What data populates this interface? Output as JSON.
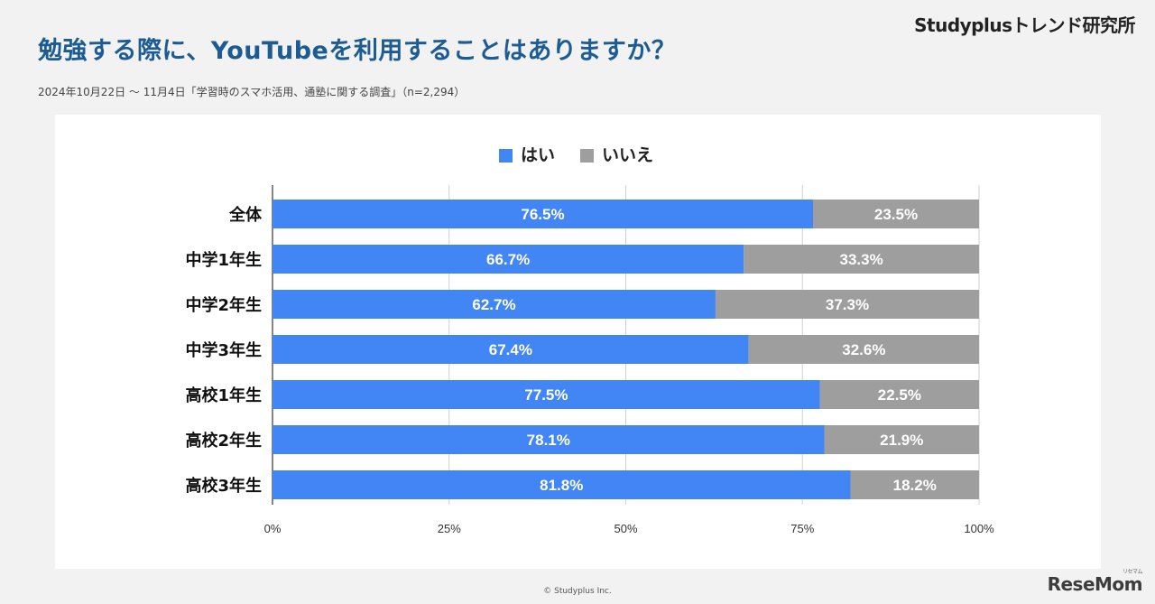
{
  "header": {
    "brand": "Studyplusトレンド研究所",
    "title": "勉強する際に、YouTubeを利用することはありますか？",
    "subtitle": "2024年10月22日 〜 11月4日「学習時のスマホ活用、通塾に関する調査」（n=2,294）"
  },
  "footer": {
    "copyright": "© Studyplus Inc.",
    "watermark": "ReseMom",
    "watermark_kana": "リセマム"
  },
  "chart_data": {
    "type": "bar",
    "orientation": "horizontal",
    "stacked": true,
    "categories": [
      "全体",
      "中学1年生",
      "中学2年生",
      "中学3年生",
      "高校1年生",
      "高校2年生",
      "高校3年生"
    ],
    "series": [
      {
        "name": "はい",
        "color": "#4285f4",
        "values": [
          76.5,
          66.7,
          62.7,
          67.4,
          77.5,
          78.1,
          81.8
        ],
        "labels": [
          "76.5%",
          "66.7%",
          "62.7%",
          "67.4%",
          "77.5%",
          "78.1%",
          "81.8%"
        ]
      },
      {
        "name": "いいえ",
        "color": "#9e9e9e",
        "values": [
          23.5,
          33.3,
          37.3,
          32.6,
          22.5,
          21.9,
          18.2
        ],
        "labels": [
          "23.5%",
          "33.3%",
          "37.3%",
          "32.6%",
          "22.5%",
          "21.9%",
          "18.2%"
        ]
      }
    ],
    "xlim": [
      0,
      100
    ],
    "x_ticks": [
      0,
      25,
      50,
      75,
      100
    ],
    "x_tick_labels": [
      "0%",
      "25%",
      "50%",
      "75%",
      "100%"
    ],
    "grid": true,
    "legend": "top-center"
  }
}
